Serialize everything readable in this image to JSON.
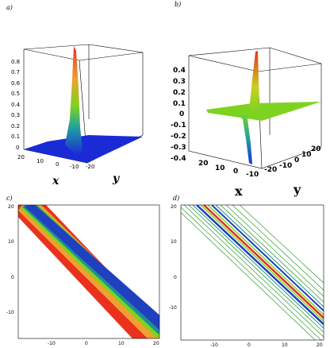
{
  "panel_labels": {
    "a": "a)",
    "b": "b)",
    "c": "c)",
    "d": "d)"
  },
  "colors": {
    "blue": "#1a2bd6",
    "green": "#7ed321",
    "red": "#e8321e",
    "orange": "#f0a030",
    "contour_green": "#2e9d2e",
    "contour_blue": "#2040c0",
    "contour_teal": "#1f8f8f",
    "contour_red": "#e03020"
  },
  "chart_data": [
    {
      "type": "surface3d",
      "panel": "a",
      "xlabel": "x",
      "ylabel": "y",
      "z_ticks": [
        "0",
        "0.1",
        "0.2",
        "0.3",
        "0.4",
        "0.5",
        "0.6",
        "0.7",
        "0.8"
      ],
      "x_ticks": [
        "20",
        "10",
        "0",
        "-10",
        "-20"
      ],
      "y_ticks": [
        "-20"
      ],
      "zlim": [
        0,
        0.85
      ]
    },
    {
      "type": "surface3d",
      "panel": "b",
      "xlabel": "x",
      "ylabel": "y",
      "z_ticks": [
        "0.4",
        "0.3",
        "0.2",
        "0.1",
        "0",
        "-0.1",
        "-0.2",
        "-0.3",
        "-0.4"
      ],
      "x_ticks": [
        "20",
        "10",
        "0",
        "-10",
        "-20"
      ],
      "y_ticks": [
        "-20",
        "-10",
        "0",
        "10",
        "20"
      ],
      "zlim": [
        -0.45,
        0.45
      ]
    },
    {
      "type": "contour",
      "panel": "c",
      "xlim": [
        -20,
        20
      ],
      "ylim": [
        -15,
        20
      ],
      "x_ticks": [
        "-10",
        "0",
        "10",
        "20"
      ],
      "y_ticks": [
        "20",
        "10",
        "0",
        "-10"
      ]
    },
    {
      "type": "contour",
      "panel": "d",
      "xlim": [
        -20,
        20
      ],
      "ylim": [
        -15,
        20
      ],
      "x_ticks": [
        "-10",
        "0",
        "10",
        "20"
      ],
      "y_ticks": [
        "20",
        "10",
        "0",
        "-10"
      ]
    }
  ]
}
